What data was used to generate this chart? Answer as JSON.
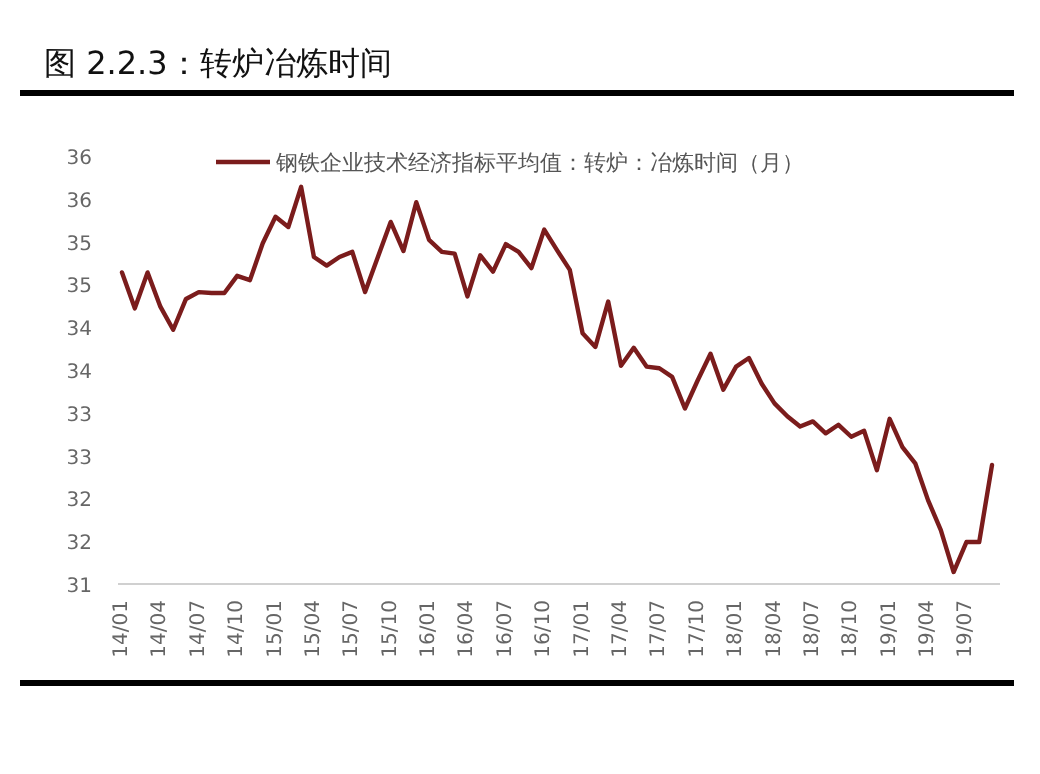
{
  "chart_data": {
    "type": "line",
    "title": "图 2.2.3：转炉冶炼时间",
    "categories": [
      "14/01",
      null,
      null,
      "14/04",
      null,
      null,
      "14/07",
      null,
      null,
      "14/10",
      null,
      null,
      "15/01",
      null,
      null,
      "15/04",
      null,
      null,
      "15/07",
      null,
      null,
      "15/10",
      null,
      null,
      "16/01",
      null,
      null,
      "16/04",
      null,
      null,
      "16/07",
      null,
      null,
      "16/10",
      null,
      null,
      "17/01",
      null,
      null,
      "17/04",
      null,
      null,
      "17/07",
      null,
      null,
      "17/10",
      null,
      null,
      "18/01",
      null,
      null,
      "18/04",
      null,
      null,
      "18/07",
      null,
      null,
      "18/10",
      null,
      null,
      "19/01",
      null,
      null,
      "19/04",
      null,
      null,
      "19/07",
      null,
      null
    ],
    "series": [
      {
        "name": "钢铁企业技术经济指标平均值：转炉：冶炼时间（月）",
        "color": "#7b1c1c",
        "values": [
          34.64,
          34.22,
          34.64,
          34.24,
          33.97,
          34.33,
          34.41,
          34.4,
          34.4,
          34.6,
          34.55,
          34.98,
          35.29,
          35.17,
          35.64,
          34.82,
          34.72,
          34.82,
          34.88,
          34.41,
          34.82,
          35.23,
          34.89,
          35.46,
          35.02,
          34.88,
          34.86,
          34.36,
          34.84,
          34.65,
          34.97,
          34.88,
          34.69,
          35.14,
          34.9,
          34.67,
          33.93,
          33.77,
          34.3,
          33.55,
          33.76,
          33.54,
          33.52,
          33.42,
          33.05,
          33.38,
          33.69,
          33.27,
          33.54,
          33.64,
          33.34,
          33.11,
          32.96,
          32.84,
          32.9,
          32.76,
          32.86,
          32.72,
          32.79,
          32.33,
          32.93,
          32.6,
          32.41,
          31.98,
          31.63,
          31.14,
          31.49,
          31.49,
          32.39
        ]
      }
    ],
    "ylim": [
      31,
      36
    ],
    "yticks": [
      31,
      {
        "value": 31.5,
        "label": "32"
      },
      32,
      {
        "value": 32.5,
        "label": "33"
      },
      33,
      {
        "value": 33.5,
        "label": "34"
      },
      34,
      {
        "value": 34.5,
        "label": "35"
      },
      35,
      {
        "value": 35.5,
        "label": "36"
      },
      36
    ],
    "legend": "top",
    "marker": "none",
    "line_style": "solid"
  }
}
